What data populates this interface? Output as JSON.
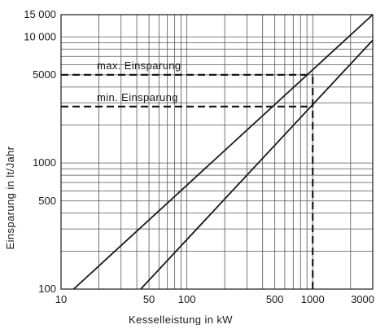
{
  "chart_data": {
    "type": "line",
    "xlabel": "Kesselleistung  in  kW",
    "ylabel": "Einsparung  in  lt/Jahr",
    "xscale": "log",
    "yscale": "log",
    "xlim": [
      10,
      3000
    ],
    "ylim": [
      100,
      15000
    ],
    "grid": true,
    "x_ticks": [
      {
        "value": 10,
        "label": "10"
      },
      {
        "value": 50,
        "label": "50"
      },
      {
        "value": 100,
        "label": "100"
      },
      {
        "value": 500,
        "label": "500"
      },
      {
        "value": 1000,
        "label": "1000"
      },
      {
        "value": 3000,
        "label": "3000"
      }
    ],
    "y_ticks": [
      {
        "value": 100,
        "label": "100"
      },
      {
        "value": 500,
        "label": "500"
      },
      {
        "value": 1000,
        "label": "1000"
      },
      {
        "value": 5000,
        "label": "5000"
      },
      {
        "value": 10000,
        "label": "10 000"
      },
      {
        "value": 15000,
        "label": "15 000"
      }
    ],
    "series": [
      {
        "x": [
          12.6,
          3000
        ],
        "y": [
          100,
          15000
        ]
      },
      {
        "x": [
          43,
          3000
        ],
        "y": [
          100,
          9400
        ]
      }
    ],
    "annotations": [
      {
        "text": "max. Einsparung",
        "x": 1000,
        "y": 5000
      },
      {
        "text": "min. Einsparung",
        "x": 1000,
        "y": 2800
      }
    ],
    "reference_lines": [
      {
        "axis": "y",
        "value": 5000,
        "from_x": 10,
        "to_x": 1000,
        "style": "dashed"
      },
      {
        "axis": "y",
        "value": 2800,
        "from_x": 10,
        "to_x": 1000,
        "style": "dashed"
      },
      {
        "axis": "x",
        "value": 1000,
        "from_y": 100,
        "to_y": 5000,
        "style": "dashed"
      }
    ],
    "colors": {
      "line": "#1a1a1a",
      "grid": "#555555",
      "text": "#1a1a1a"
    }
  }
}
